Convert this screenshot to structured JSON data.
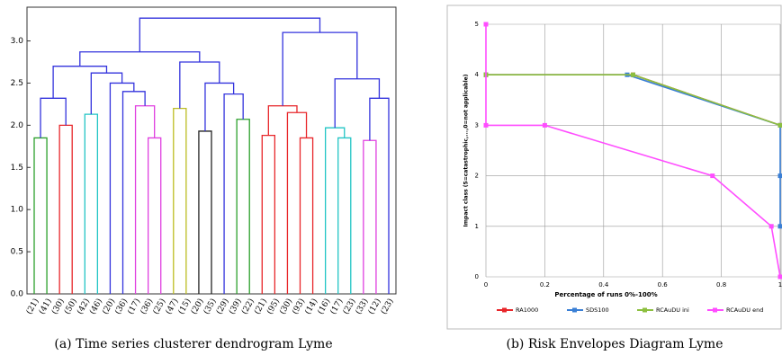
{
  "chart_data": [
    {
      "type": "dendrogram",
      "caption": "(a) Time series clusterer dendrogram Lyme",
      "categories": [
        "(21)",
        "(41)",
        "(30)",
        "(50)",
        "(42)",
        "(46)",
        "(20)",
        "(36)",
        "(17)",
        "(36)",
        "(25)",
        "(47)",
        "(15)",
        "(20)",
        "(35)",
        "(29)",
        "(39)",
        "(22)",
        "(21)",
        "(95)",
        "(30)",
        "(93)",
        "(14)",
        "(16)",
        "(17)",
        "(23)",
        "(33)",
        "(12)",
        "(23)"
      ],
      "merges": [
        {
          "children": [
            0,
            1
          ],
          "height": 1.85,
          "color": "#2ca02c"
        },
        {
          "children": [
            2,
            3
          ],
          "height": 2.0,
          "color": "#e8262a"
        },
        {
          "children": [
            29,
            30
          ],
          "height": 2.32,
          "color": "#3333dd"
        },
        {
          "children": [
            4,
            5
          ],
          "height": 2.13,
          "color": "#22c5c5"
        },
        {
          "children": [
            9,
            10
          ],
          "height": 1.85,
          "color": "#e040e0"
        },
        {
          "children": [
            8,
            33
          ],
          "height": 2.23,
          "color": "#e040e0"
        },
        {
          "children": [
            7,
            34
          ],
          "height": 2.4,
          "color": "#3333dd"
        },
        {
          "children": [
            6,
            35
          ],
          "height": 2.5,
          "color": "#3333dd"
        },
        {
          "children": [
            32,
            36
          ],
          "height": 2.62,
          "color": "#3333dd"
        },
        {
          "children": [
            31,
            37
          ],
          "height": 2.7,
          "color": "#3333dd"
        },
        {
          "children": [
            11,
            12
          ],
          "height": 2.2,
          "color": "#bcbd22"
        },
        {
          "children": [
            13,
            14
          ],
          "height": 1.93,
          "color": "#222222"
        },
        {
          "children": [
            16,
            17
          ],
          "height": 2.07,
          "color": "#2ca02c"
        },
        {
          "children": [
            15,
            41
          ],
          "height": 2.37,
          "color": "#3333dd"
        },
        {
          "children": [
            40,
            42
          ],
          "height": 2.5,
          "color": "#3333dd"
        },
        {
          "children": [
            39,
            43
          ],
          "height": 2.75,
          "color": "#3333dd"
        },
        {
          "children": [
            38,
            44
          ],
          "height": 2.87,
          "color": "#3333dd"
        },
        {
          "children": [
            18,
            19
          ],
          "height": 1.88,
          "color": "#e8262a"
        },
        {
          "children": [
            21,
            22
          ],
          "height": 1.85,
          "color": "#e8262a"
        },
        {
          "children": [
            20,
            47
          ],
          "height": 2.15,
          "color": "#e8262a"
        },
        {
          "children": [
            46,
            48
          ],
          "height": 2.23,
          "color": "#e8262a"
        },
        {
          "children": [
            24,
            25
          ],
          "height": 1.85,
          "color": "#22c5c5"
        },
        {
          "children": [
            23,
            50
          ],
          "height": 1.97,
          "color": "#22c5c5"
        },
        {
          "children": [
            26,
            27
          ],
          "height": 1.82,
          "color": "#e040e0"
        },
        {
          "children": [
            52,
            28
          ],
          "height": 2.32,
          "color": "#3333dd"
        },
        {
          "children": [
            51,
            53
          ],
          "height": 2.55,
          "color": "#3333dd"
        },
        {
          "children": [
            49,
            54
          ],
          "height": 3.1,
          "color": "#3333dd"
        },
        {
          "children": [
            45,
            55
          ],
          "height": 3.27,
          "color": "#3333dd"
        }
      ],
      "ylim": [
        0,
        3.4
      ],
      "yticks": [
        {
          "value": 0,
          "label": "0.0"
        },
        {
          "value": 0.5,
          "label": "0.5"
        },
        {
          "value": 1,
          "label": "1.0"
        },
        {
          "value": 1.5,
          "label": "1.5"
        },
        {
          "value": 2,
          "label": "2.0"
        },
        {
          "value": 2.5,
          "label": "2.5"
        },
        {
          "value": 3,
          "label": "3.0"
        }
      ]
    },
    {
      "type": "line",
      "caption": "(b) Risk Envelopes Diagram Lyme",
      "xlabel": "Percentage of runs 0%-100%",
      "ylabel": "Impact class (5=catastrophic,...,0=not applicable)",
      "xlim": [
        0,
        1
      ],
      "xticks": [
        0,
        0.2,
        0.4,
        0.6,
        0.8,
        1
      ],
      "ylim": [
        0,
        5
      ],
      "yticks": [
        0,
        1,
        2,
        3,
        4,
        5
      ],
      "grid": true,
      "series": [
        {
          "name": "RA1000",
          "color": "#e8262a",
          "x": [
            0,
            0.5,
            1
          ],
          "values": [
            4,
            4,
            3
          ]
        },
        {
          "name": "SDS100",
          "color": "#3a7fd5",
          "x": [
            0,
            0.48,
            1,
            1,
            1
          ],
          "values": [
            4,
            4,
            3,
            2,
            1
          ]
        },
        {
          "name": "RCAuDU ini",
          "color": "#8cbf3f",
          "x": [
            0,
            0.5,
            1
          ],
          "values": [
            4,
            4,
            3
          ]
        },
        {
          "name": "RCAuDU end",
          "color": "#ff4dff",
          "x": [
            0,
            0,
            0.2,
            0.77,
            0.97,
            1
          ],
          "values": [
            5,
            3,
            3,
            2,
            1,
            0
          ]
        }
      ]
    }
  ]
}
